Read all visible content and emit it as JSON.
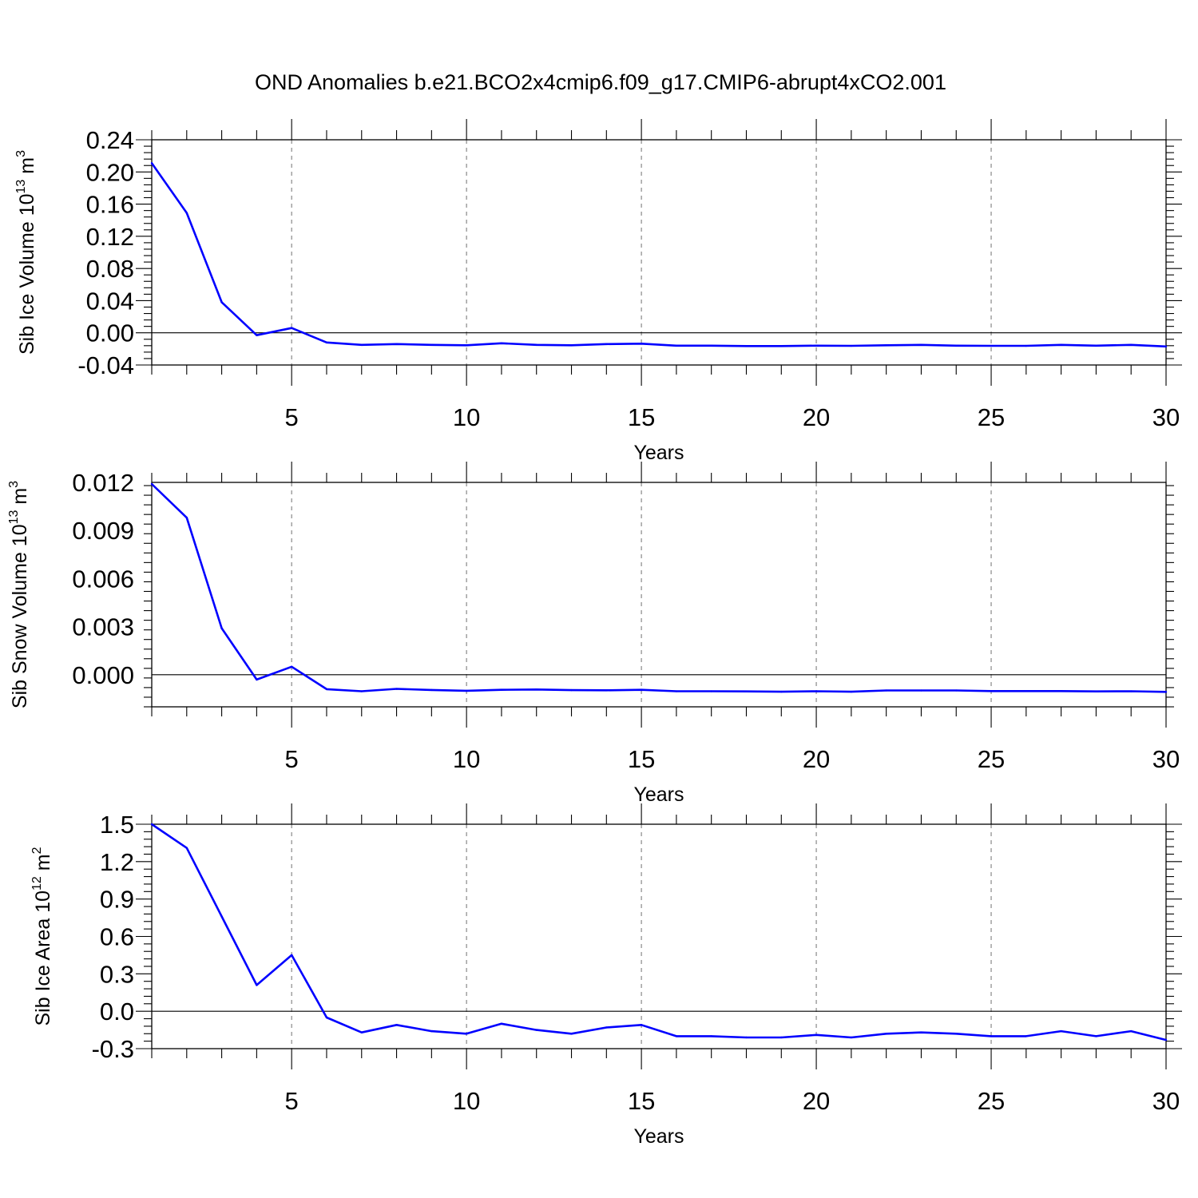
{
  "title": "OND Anomalies b.e21.BCO2x4cmip6.f09_g17.CMIP6-abrupt4xCO2.001",
  "colors": {
    "line": "#0000ff",
    "grid": "#888888"
  },
  "chart_data": [
    {
      "type": "line",
      "ylabel": {
        "base": "Sib Ice Volume 10",
        "exp": "13",
        "unit": " m",
        "unit_exp": "3"
      },
      "xlabel": "Years",
      "xlim": [
        1,
        30
      ],
      "ylim": [
        -0.04,
        0.24
      ],
      "yticks": [
        "0.24",
        "0.20",
        "0.16",
        "0.12",
        "0.08",
        "0.04",
        "0.00",
        "-0.04"
      ],
      "ytick_values": [
        0.24,
        0.2,
        0.16,
        0.12,
        0.08,
        0.04,
        0.0,
        -0.04
      ],
      "yminor_step": 0.008,
      "xticks": [
        "5",
        "10",
        "15",
        "20",
        "25",
        "30"
      ],
      "xtick_values": [
        5,
        10,
        15,
        20,
        25,
        30
      ],
      "x": [
        1,
        2,
        3,
        4,
        5,
        6,
        7,
        8,
        9,
        10,
        11,
        12,
        13,
        14,
        15,
        16,
        17,
        18,
        19,
        20,
        21,
        22,
        23,
        24,
        25,
        26,
        27,
        28,
        29,
        30
      ],
      "y": [
        0.211,
        0.149,
        0.038,
        -0.003,
        0.006,
        -0.012,
        -0.015,
        -0.014,
        -0.015,
        -0.0155,
        -0.013,
        -0.015,
        -0.0155,
        -0.014,
        -0.0135,
        -0.016,
        -0.016,
        -0.0165,
        -0.0165,
        -0.016,
        -0.0162,
        -0.0155,
        -0.015,
        -0.016,
        -0.0162,
        -0.0162,
        -0.015,
        -0.016,
        -0.015,
        -0.017
      ]
    },
    {
      "type": "line",
      "ylabel": {
        "base": "Sib Snow Volume 10",
        "exp": "13",
        "unit": " m",
        "unit_exp": "3"
      },
      "xlabel": "Years",
      "xlim": [
        1,
        30
      ],
      "ylim": [
        -0.002,
        0.012
      ],
      "yticks": [
        "0.012",
        "0.009",
        "0.006",
        "0.003",
        "0.000"
      ],
      "ytick_values": [
        0.012,
        0.009,
        0.006,
        0.003,
        0.0
      ],
      "yminor_step": 0.0006,
      "xticks": [
        "5",
        "10",
        "15",
        "20",
        "25",
        "30"
      ],
      "xtick_values": [
        5,
        10,
        15,
        20,
        25,
        30
      ],
      "x": [
        1,
        2,
        3,
        4,
        5,
        6,
        7,
        8,
        9,
        10,
        11,
        12,
        13,
        14,
        15,
        16,
        17,
        18,
        19,
        20,
        21,
        22,
        23,
        24,
        25,
        26,
        27,
        28,
        29,
        30
      ],
      "y": [
        0.0119,
        0.0098,
        0.0029,
        -0.0003,
        0.0005,
        -0.0009,
        -0.00103,
        -0.00088,
        -0.00095,
        -0.001,
        -0.00094,
        -0.00092,
        -0.00096,
        -0.00097,
        -0.00094,
        -0.00103,
        -0.00103,
        -0.00104,
        -0.00106,
        -0.00103,
        -0.00106,
        -0.00098,
        -0.00098,
        -0.00098,
        -0.00102,
        -0.00102,
        -0.00102,
        -0.00104,
        -0.00103,
        -0.00107
      ]
    },
    {
      "type": "line",
      "ylabel": {
        "base": "Sib Ice Area 10",
        "exp": "12",
        "unit": " m",
        "unit_exp": "2"
      },
      "xlabel": "Years",
      "xlim": [
        1,
        30
      ],
      "ylim": [
        -0.3,
        1.5
      ],
      "yticks": [
        "1.5",
        "1.2",
        "0.9",
        "0.6",
        "0.3",
        "0.0",
        "-0.3"
      ],
      "ytick_values": [
        1.5,
        1.2,
        0.9,
        0.6,
        0.3,
        0.0,
        -0.3
      ],
      "yminor_step": 0.06,
      "xticks": [
        "5",
        "10",
        "15",
        "20",
        "25",
        "30"
      ],
      "xtick_values": [
        5,
        10,
        15,
        20,
        25,
        30
      ],
      "x": [
        1,
        2,
        3,
        4,
        5,
        6,
        7,
        8,
        9,
        10,
        11,
        12,
        13,
        14,
        15,
        16,
        17,
        18,
        19,
        20,
        21,
        22,
        23,
        24,
        25,
        26,
        27,
        28,
        29,
        30
      ],
      "y": [
        1.5,
        1.31,
        0.76,
        0.21,
        0.45,
        -0.05,
        -0.17,
        -0.11,
        -0.16,
        -0.18,
        -0.1,
        -0.15,
        -0.18,
        -0.13,
        -0.11,
        -0.2,
        -0.2,
        -0.21,
        -0.21,
        -0.19,
        -0.21,
        -0.18,
        -0.17,
        -0.18,
        -0.2,
        -0.2,
        -0.16,
        -0.2,
        -0.16,
        -0.23
      ]
    }
  ]
}
